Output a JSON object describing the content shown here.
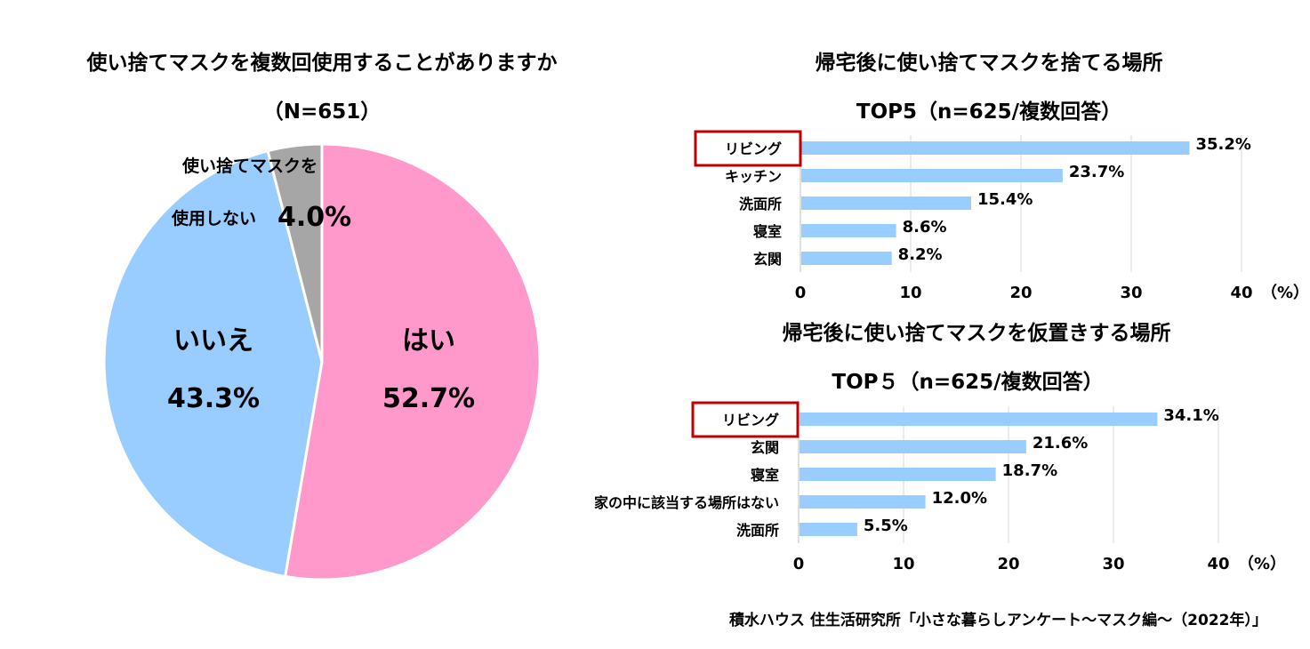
{
  "chart_data": [
    {
      "type": "pie",
      "title": "使い捨てマスクを複数回使用することがありますか",
      "subtitle": "（N=651）",
      "slices": [
        {
          "label": "はい",
          "value": 52.7,
          "value_label": "52.7%",
          "color": "#FF99CC"
        },
        {
          "label": "いいえ",
          "value": 43.3,
          "value_label": "43.3%",
          "color": "#99CCFF"
        },
        {
          "label_line1": "使い捨てマスクを",
          "label": "使用しない",
          "value": 4.0,
          "value_label": "4.0%",
          "color": "#A6A6A6"
        }
      ]
    },
    {
      "type": "bar",
      "orientation": "horizontal",
      "title": "帰宅後に使い捨てマスクを捨てる場所",
      "subtitle": "TOP5（n=625/複数回答）",
      "categories": [
        "リビング",
        "キッチン",
        "洗面所",
        "寝室",
        "玄関"
      ],
      "values": [
        35.2,
        23.7,
        15.4,
        8.6,
        8.2
      ],
      "value_labels": [
        "35.2%",
        "23.7%",
        "15.4%",
        "8.6%",
        "8.2%"
      ],
      "xlim": [
        0,
        40
      ],
      "xticks": [
        "0",
        "10",
        "20",
        "30",
        "40"
      ],
      "unit_label": "（%）",
      "highlight": "リビング",
      "color": "#99CCFF",
      "grid": true
    },
    {
      "type": "bar",
      "orientation": "horizontal",
      "title": "帰宅後に使い捨てマスクを仮置きする場所",
      "subtitle": "TOP５（n=625/複数回答）",
      "categories": [
        "リビング",
        "玄関",
        "寝室",
        "家の中に該当する場所はない",
        "洗面所"
      ],
      "values": [
        34.1,
        21.6,
        18.7,
        12.0,
        5.5
      ],
      "value_labels": [
        "34.1%",
        "21.6%",
        "18.7%",
        "12.0%",
        "5.5%"
      ],
      "xlim": [
        0,
        40
      ],
      "xticks": [
        "0",
        "10",
        "20",
        "30",
        "40"
      ],
      "unit_label": "（%）",
      "highlight": "リビング",
      "color": "#99CCFF",
      "grid": true
    }
  ],
  "source": "積水ハウス 住生活研究所「小さな暮らしアンケート～マスク編～（2022年）」",
  "highlight_color": "#C00000"
}
